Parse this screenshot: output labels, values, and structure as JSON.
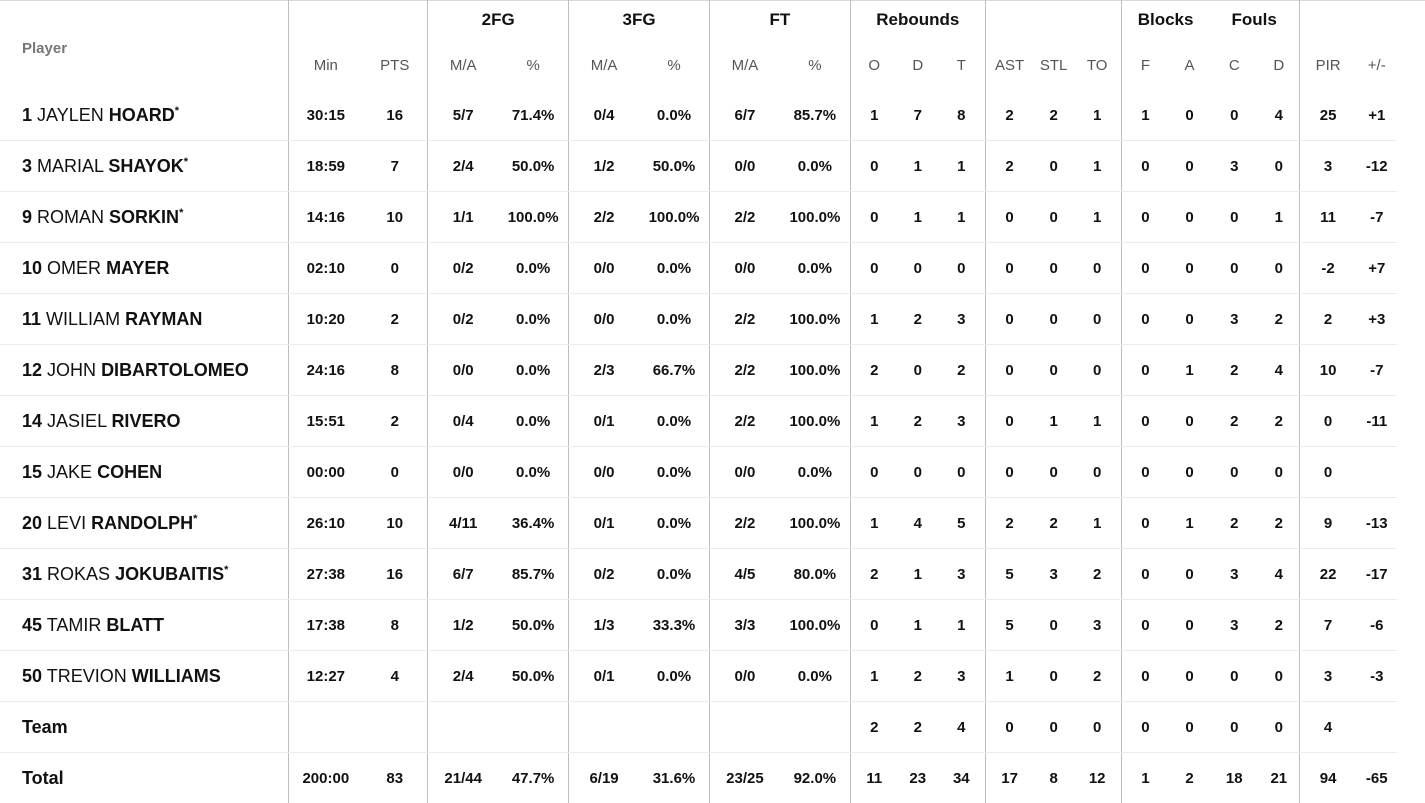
{
  "groups": {
    "fg2": "2FG",
    "fg3": "3FG",
    "ft": "FT",
    "rebounds": "Rebounds",
    "blocks": "Blocks",
    "fouls": "Fouls"
  },
  "headers": {
    "player": "Player",
    "min": "Min",
    "pts": "PTS",
    "fg2_ma": "M/A",
    "fg2_pct": "%",
    "fg3_ma": "M/A",
    "fg3_pct": "%",
    "ft_ma": "M/A",
    "ft_pct": "%",
    "reb_o": "O",
    "reb_d": "D",
    "reb_t": "T",
    "ast": "AST",
    "stl": "STL",
    "to": "TO",
    "blk_f": "F",
    "blk_a": "A",
    "foul_c": "C",
    "foul_d": "D",
    "pir": "PIR",
    "pm": "+/-"
  },
  "players": [
    {
      "number": "1",
      "first": "JAYLEN",
      "last": "HOARD",
      "star": "*",
      "min": "30:15",
      "pts": "16",
      "fg2_ma": "5/7",
      "fg2_pct": "71.4%",
      "fg3_ma": "0/4",
      "fg3_pct": "0.0%",
      "ft_ma": "6/7",
      "ft_pct": "85.7%",
      "reb_o": "1",
      "reb_d": "7",
      "reb_t": "8",
      "ast": "2",
      "stl": "2",
      "to": "1",
      "blk_f": "1",
      "blk_a": "0",
      "foul_c": "0",
      "foul_d": "4",
      "pir": "25",
      "pm": "+1"
    },
    {
      "number": "3",
      "first": "MARIAL",
      "last": "SHAYOK",
      "star": "*",
      "min": "18:59",
      "pts": "7",
      "fg2_ma": "2/4",
      "fg2_pct": "50.0%",
      "fg3_ma": "1/2",
      "fg3_pct": "50.0%",
      "ft_ma": "0/0",
      "ft_pct": "0.0%",
      "reb_o": "0",
      "reb_d": "1",
      "reb_t": "1",
      "ast": "2",
      "stl": "0",
      "to": "1",
      "blk_f": "0",
      "blk_a": "0",
      "foul_c": "3",
      "foul_d": "0",
      "pir": "3",
      "pm": "-12"
    },
    {
      "number": "9",
      "first": "ROMAN",
      "last": "SORKIN",
      "star": "*",
      "min": "14:16",
      "pts": "10",
      "fg2_ma": "1/1",
      "fg2_pct": "100.0%",
      "fg3_ma": "2/2",
      "fg3_pct": "100.0%",
      "ft_ma": "2/2",
      "ft_pct": "100.0%",
      "reb_o": "0",
      "reb_d": "1",
      "reb_t": "1",
      "ast": "0",
      "stl": "0",
      "to": "1",
      "blk_f": "0",
      "blk_a": "0",
      "foul_c": "0",
      "foul_d": "1",
      "pir": "11",
      "pm": "-7"
    },
    {
      "number": "10",
      "first": "OMER",
      "last": "MAYER",
      "star": "",
      "min": "02:10",
      "pts": "0",
      "fg2_ma": "0/2",
      "fg2_pct": "0.0%",
      "fg3_ma": "0/0",
      "fg3_pct": "0.0%",
      "ft_ma": "0/0",
      "ft_pct": "0.0%",
      "reb_o": "0",
      "reb_d": "0",
      "reb_t": "0",
      "ast": "0",
      "stl": "0",
      "to": "0",
      "blk_f": "0",
      "blk_a": "0",
      "foul_c": "0",
      "foul_d": "0",
      "pir": "-2",
      "pm": "+7"
    },
    {
      "number": "11",
      "first": "WILLIAM",
      "last": "RAYMAN",
      "star": "",
      "min": "10:20",
      "pts": "2",
      "fg2_ma": "0/2",
      "fg2_pct": "0.0%",
      "fg3_ma": "0/0",
      "fg3_pct": "0.0%",
      "ft_ma": "2/2",
      "ft_pct": "100.0%",
      "reb_o": "1",
      "reb_d": "2",
      "reb_t": "3",
      "ast": "0",
      "stl": "0",
      "to": "0",
      "blk_f": "0",
      "blk_a": "0",
      "foul_c": "3",
      "foul_d": "2",
      "pir": "2",
      "pm": "+3"
    },
    {
      "number": "12",
      "first": "JOHN",
      "last": "DIBARTOLOMEO",
      "star": "",
      "min": "24:16",
      "pts": "8",
      "fg2_ma": "0/0",
      "fg2_pct": "0.0%",
      "fg3_ma": "2/3",
      "fg3_pct": "66.7%",
      "ft_ma": "2/2",
      "ft_pct": "100.0%",
      "reb_o": "2",
      "reb_d": "0",
      "reb_t": "2",
      "ast": "0",
      "stl": "0",
      "to": "0",
      "blk_f": "0",
      "blk_a": "1",
      "foul_c": "2",
      "foul_d": "4",
      "pir": "10",
      "pm": "-7"
    },
    {
      "number": "14",
      "first": "JASIEL",
      "last": "RIVERO",
      "star": "",
      "min": "15:51",
      "pts": "2",
      "fg2_ma": "0/4",
      "fg2_pct": "0.0%",
      "fg3_ma": "0/1",
      "fg3_pct": "0.0%",
      "ft_ma": "2/2",
      "ft_pct": "100.0%",
      "reb_o": "1",
      "reb_d": "2",
      "reb_t": "3",
      "ast": "0",
      "stl": "1",
      "to": "1",
      "blk_f": "0",
      "blk_a": "0",
      "foul_c": "2",
      "foul_d": "2",
      "pir": "0",
      "pm": "-11"
    },
    {
      "number": "15",
      "first": "JAKE",
      "last": "COHEN",
      "star": "",
      "min": "00:00",
      "pts": "0",
      "fg2_ma": "0/0",
      "fg2_pct": "0.0%",
      "fg3_ma": "0/0",
      "fg3_pct": "0.0%",
      "ft_ma": "0/0",
      "ft_pct": "0.0%",
      "reb_o": "0",
      "reb_d": "0",
      "reb_t": "0",
      "ast": "0",
      "stl": "0",
      "to": "0",
      "blk_f": "0",
      "blk_a": "0",
      "foul_c": "0",
      "foul_d": "0",
      "pir": "0",
      "pm": ""
    },
    {
      "number": "20",
      "first": "LEVI",
      "last": "RANDOLPH",
      "star": "*",
      "min": "26:10",
      "pts": "10",
      "fg2_ma": "4/11",
      "fg2_pct": "36.4%",
      "fg3_ma": "0/1",
      "fg3_pct": "0.0%",
      "ft_ma": "2/2",
      "ft_pct": "100.0%",
      "reb_o": "1",
      "reb_d": "4",
      "reb_t": "5",
      "ast": "2",
      "stl": "2",
      "to": "1",
      "blk_f": "0",
      "blk_a": "1",
      "foul_c": "2",
      "foul_d": "2",
      "pir": "9",
      "pm": "-13"
    },
    {
      "number": "31",
      "first": "ROKAS",
      "last": "JOKUBAITIS",
      "star": "*",
      "min": "27:38",
      "pts": "16",
      "fg2_ma": "6/7",
      "fg2_pct": "85.7%",
      "fg3_ma": "0/2",
      "fg3_pct": "0.0%",
      "ft_ma": "4/5",
      "ft_pct": "80.0%",
      "reb_o": "2",
      "reb_d": "1",
      "reb_t": "3",
      "ast": "5",
      "stl": "3",
      "to": "2",
      "blk_f": "0",
      "blk_a": "0",
      "foul_c": "3",
      "foul_d": "4",
      "pir": "22",
      "pm": "-17"
    },
    {
      "number": "45",
      "first": "TAMIR",
      "last": "BLATT",
      "star": "",
      "min": "17:38",
      "pts": "8",
      "fg2_ma": "1/2",
      "fg2_pct": "50.0%",
      "fg3_ma": "1/3",
      "fg3_pct": "33.3%",
      "ft_ma": "3/3",
      "ft_pct": "100.0%",
      "reb_o": "0",
      "reb_d": "1",
      "reb_t": "1",
      "ast": "5",
      "stl": "0",
      "to": "3",
      "blk_f": "0",
      "blk_a": "0",
      "foul_c": "3",
      "foul_d": "2",
      "pir": "7",
      "pm": "-6"
    },
    {
      "number": "50",
      "first": "TREVION",
      "last": "WILLIAMS",
      "star": "",
      "min": "12:27",
      "pts": "4",
      "fg2_ma": "2/4",
      "fg2_pct": "50.0%",
      "fg3_ma": "0/1",
      "fg3_pct": "0.0%",
      "ft_ma": "0/0",
      "ft_pct": "0.0%",
      "reb_o": "1",
      "reb_d": "2",
      "reb_t": "3",
      "ast": "1",
      "stl": "0",
      "to": "2",
      "blk_f": "0",
      "blk_a": "0",
      "foul_c": "0",
      "foul_d": "0",
      "pir": "3",
      "pm": "-3"
    }
  ],
  "team": {
    "label": "Team",
    "min": "",
    "pts": "",
    "fg2_ma": "",
    "fg2_pct": "",
    "fg3_ma": "",
    "fg3_pct": "",
    "ft_ma": "",
    "ft_pct": "",
    "reb_o": "2",
    "reb_d": "2",
    "reb_t": "4",
    "ast": "0",
    "stl": "0",
    "to": "0",
    "blk_f": "0",
    "blk_a": "0",
    "foul_c": "0",
    "foul_d": "0",
    "pir": "4",
    "pm": ""
  },
  "total": {
    "label": "Total",
    "min": "200:00",
    "pts": "83",
    "fg2_ma": "21/44",
    "fg2_pct": "47.7%",
    "fg3_ma": "6/19",
    "fg3_pct": "31.6%",
    "ft_ma": "23/25",
    "ft_pct": "92.0%",
    "reb_o": "11",
    "reb_d": "23",
    "reb_t": "34",
    "ast": "17",
    "stl": "8",
    "to": "12",
    "blk_f": "1",
    "blk_a": "2",
    "foul_c": "18",
    "foul_d": "21",
    "pir": "94",
    "pm": "-65"
  }
}
